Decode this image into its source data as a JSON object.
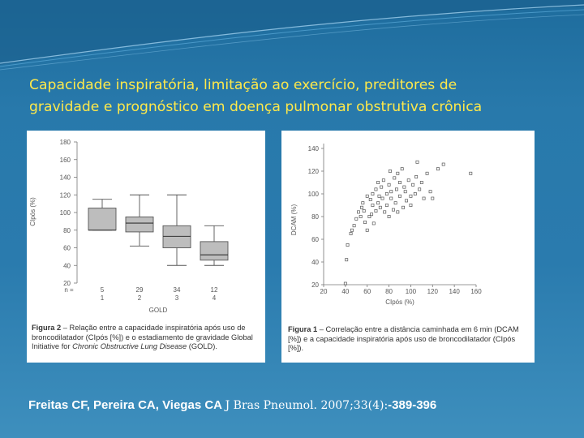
{
  "slide": {
    "title_line1": "Capacidade inspiratória, limitação ao exercício, preditores de",
    "title_line2": "gravidade e prognóstico em doença pulmonar obstrutiva crônica",
    "colors": {
      "title": "#ffe94a",
      "background": "#2a7bae",
      "text": "#ffffff"
    }
  },
  "figure2": {
    "caption_label": "Figura 2",
    "caption_text": " – Relação entre a capacidade inspiratória após uso de broncodilatador (CIpós [%]) e o estadiamento de gravidade Global Initiative for ",
    "caption_italic": "Chronic Obstructive Lung Disease",
    "caption_end": " (GOLD).",
    "n_label": "n =",
    "n_values": [
      "5",
      "29",
      "34",
      "12"
    ]
  },
  "figure1": {
    "caption_label": "Figura 1",
    "caption_text": " – Correlação entre a distância caminhada em 6 min (DCAM [%]) e a capacidade inspiratória após uso de broncodilatador (CIpós [%])."
  },
  "citation": {
    "authors": "Freitas CF, Pereira CA, Viegas CA ",
    "journal": "J Bras Pneumol. 2007;33(4):",
    "pages": "-389-396"
  },
  "chart_data": [
    {
      "type": "boxplot",
      "ylabel": "CIpós (%)",
      "xlabel": "GOLD",
      "categories": [
        "1",
        "2",
        "3",
        "4"
      ],
      "ylim": [
        20,
        180
      ],
      "yticks": [
        20,
        40,
        60,
        80,
        100,
        120,
        140,
        160,
        180
      ],
      "boxes": [
        {
          "min": 80,
          "q1": 80,
          "median": 80,
          "q3": 105,
          "max": 115
        },
        {
          "min": 62,
          "q1": 78,
          "median": 88,
          "q3": 95,
          "max": 120
        },
        {
          "min": 40,
          "q1": 60,
          "median": 73,
          "q3": 85,
          "max": 120
        },
        {
          "min": 40,
          "q1": 46,
          "median": 52,
          "q3": 67,
          "max": 85
        }
      ]
    },
    {
      "type": "scatter",
      "xlabel": "CIpós (%)",
      "ylabel": "DCAM (%)",
      "xlim": [
        20,
        160
      ],
      "ylim": [
        20,
        140
      ],
      "xticks": [
        20,
        40,
        60,
        80,
        100,
        120,
        140,
        160
      ],
      "yticks": [
        20,
        40,
        60,
        80,
        100,
        120,
        140
      ],
      "x": [
        40,
        41,
        42,
        45,
        46,
        48,
        50,
        52,
        54,
        55,
        56,
        57,
        58,
        60,
        60,
        62,
        63,
        64,
        65,
        65,
        66,
        68,
        68,
        70,
        70,
        71,
        72,
        73,
        74,
        75,
        76,
        78,
        78,
        80,
        80,
        81,
        82,
        82,
        84,
        85,
        86,
        87,
        88,
        88,
        90,
        90,
        92,
        93,
        94,
        95,
        96,
        98,
        100,
        100,
        102,
        104,
        105,
        106,
        108,
        110,
        112,
        115,
        118,
        120,
        125,
        130,
        155
      ],
      "y": [
        21,
        42,
        55,
        65,
        68,
        72,
        78,
        84,
        80,
        88,
        92,
        85,
        75,
        68,
        98,
        80,
        95,
        82,
        90,
        100,
        74,
        85,
        104,
        92,
        110,
        98,
        88,
        106,
        96,
        112,
        84,
        90,
        100,
        80,
        108,
        120,
        96,
        102,
        86,
        114,
        92,
        104,
        118,
        84,
        98,
        110,
        122,
        88,
        106,
        102,
        94,
        112,
        90,
        98,
        108,
        100,
        115,
        128,
        104,
        110,
        96,
        118,
        102,
        96,
        122,
        126,
        118
      ]
    }
  ]
}
